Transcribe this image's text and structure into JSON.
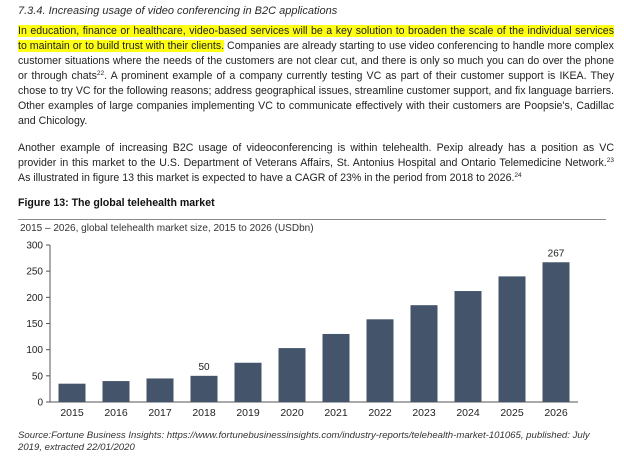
{
  "section_title": "7.3.4. Increasing usage of video conferencing in B2C applications",
  "paragraph1": {
    "highlighted": "In education, finance or healthcare, video-based services will be a key solution to broaden the scale of the individual services to maintain or to build trust with their clients.",
    "rest_part1": " Companies are already starting to use video conferencing to handle more complex customer situations where the needs of the customers are not clear cut, and there is only so much you can do over the phone or through chats",
    "footnote1": "22",
    "rest_part2": ". A prominent example of a company currently testing VC as part of their customer support is IKEA. They chose to try VC for the following reasons; address geographical issues, streamline customer support, and fix language barriers. Other examples of large companies implementing VC to communicate effectively with their customers are Poopsie's, Cadillac and Chicology."
  },
  "paragraph2": {
    "part1": "Another example of increasing B2C usage of videoconferencing is within telehealth. Pexip already has a position as VC provider in this market to the U.S. Department of Veterans Affairs, St. Antonius Hospital and Ontario Telemedicine Network.",
    "footnote1": "23",
    "part2": " As illustrated in figure 13 this market is expected to have a CAGR of 23% in the period from 2018 to 2026.",
    "footnote2": "24"
  },
  "figure_title": "Figure 13: The global telehealth market",
  "chart_data": {
    "type": "bar",
    "title": "",
    "subtitle": "2015 – 2026, global telehealth market size, 2015 to 2026 (USDbn)",
    "categories": [
      "2015",
      "2016",
      "2017",
      "2018",
      "2019",
      "2020",
      "2021",
      "2022",
      "2023",
      "2024",
      "2025",
      "2026"
    ],
    "values": [
      35,
      40,
      45,
      50,
      75,
      103,
      130,
      158,
      185,
      212,
      240,
      267
    ],
    "data_labels": {
      "2018": "50",
      "2026": "267"
    },
    "yticks": [
      0,
      50,
      100,
      150,
      200,
      250,
      300
    ],
    "ylim": [
      0,
      300
    ],
    "xlabel": "",
    "ylabel": "",
    "grid": false,
    "bar_color": "#44546a"
  },
  "source_text": "Source:Fortune Business Insights: https://www.fortunebusinessinsights.com/industry-reports/telehealth-market-101065, published: July 2019, extracted 22/01/2020"
}
